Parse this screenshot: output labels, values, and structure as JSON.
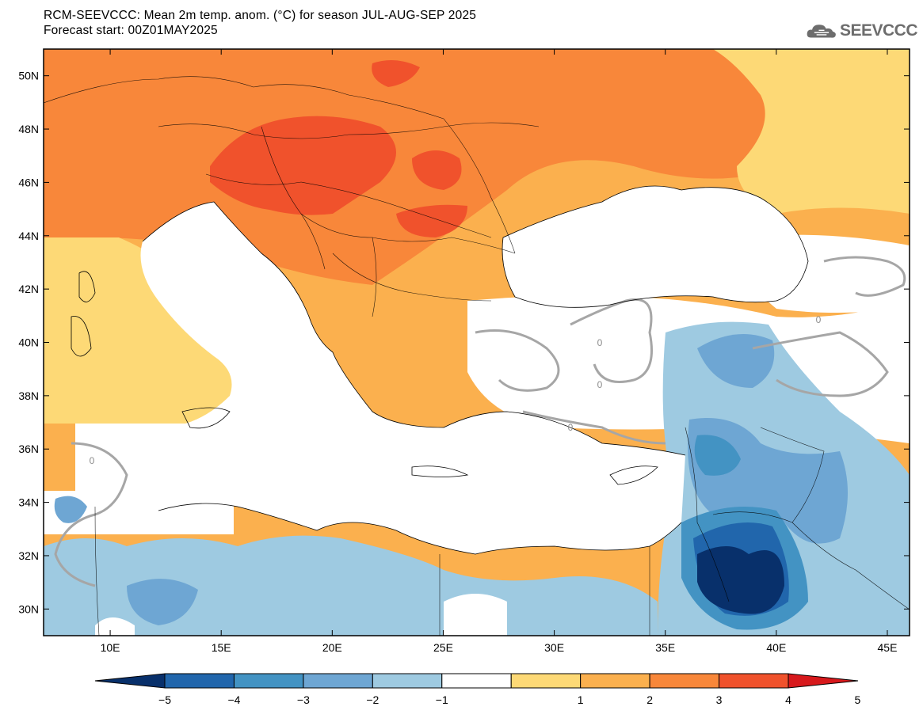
{
  "header": {
    "title": "RCM-SEEVCCC: Mean 2m temp. anom. (°C) for season JUL-AUG-SEP 2025",
    "subtitle": "Forecast start: 00Z01MAY2025"
  },
  "logo": {
    "text": "SEEVCCC",
    "icon": "cloud-icon"
  },
  "map": {
    "lon_range": [
      7,
      46
    ],
    "lat_range": [
      29,
      51
    ],
    "lat_ticks": [
      "50N",
      "48N",
      "46N",
      "44N",
      "42N",
      "40N",
      "38N",
      "36N",
      "34N",
      "32N",
      "30N"
    ],
    "lon_ticks": [
      "10E",
      "15E",
      "20E",
      "25E",
      "30E",
      "35E",
      "40E",
      "45E"
    ],
    "contour_labels": [
      "0",
      "0",
      "0",
      "0",
      "0"
    ]
  },
  "colorbar": {
    "labels": [
      "−5",
      "−4",
      "−3",
      "−2",
      "−1",
      "1",
      "2",
      "3",
      "4",
      "5"
    ],
    "colors": [
      "#08306b",
      "#2166ac",
      "#4393c3",
      "#6ea6d3",
      "#9ecae1",
      "#ffffff",
      "#fdd976",
      "#fbb04e",
      "#f8873a",
      "#f0522c",
      "#d7191c"
    ]
  }
}
